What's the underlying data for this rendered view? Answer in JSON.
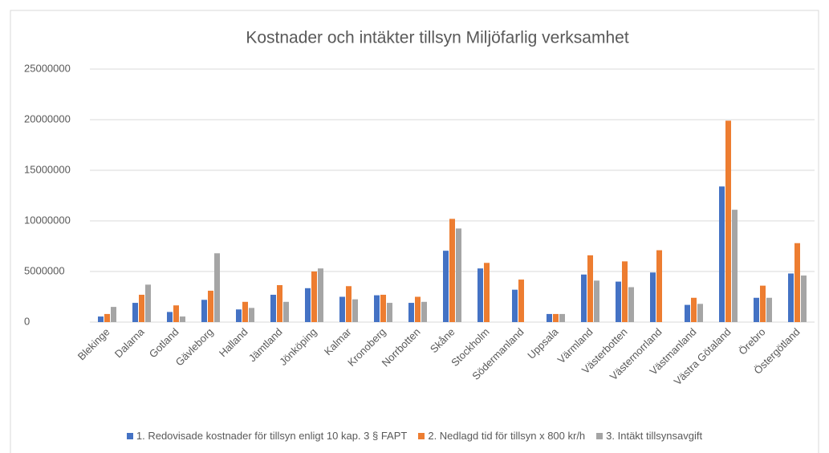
{
  "chart_data": {
    "type": "bar",
    "title": "Kostnader och intäkter tillsyn Miljöfarlig verksamhet",
    "categories": [
      "Blekinge",
      "Dalarna",
      "Gotland",
      "Gävleborg",
      "Halland",
      "Jämtland",
      "Jönköping",
      "Kalmar",
      "Kronoberg",
      "Norrbotten",
      "Skåne",
      "Stockholm",
      "Södermanland",
      "Uppsala",
      "Värmland",
      "Västerbotten",
      "Västernorrland",
      "Västmanland",
      "Västra Götaland",
      "Örebro",
      "Östergötland"
    ],
    "series": [
      {
        "name": "1. Redovisade kostnader för tillsyn enligt 10 kap. 3 § FAPT",
        "color": "#4472c4",
        "values": [
          550000,
          1900000,
          1000000,
          2200000,
          1250000,
          2700000,
          3350000,
          2500000,
          2650000,
          1900000,
          7050000,
          5300000,
          3200000,
          800000,
          4700000,
          4000000,
          4900000,
          1700000,
          13400000,
          2400000,
          4800000
        ]
      },
      {
        "name": "2. Nedlagd tid för tillsyn x 800 kr/h",
        "color": "#ed7d31",
        "values": [
          800000,
          2700000,
          1650000,
          3100000,
          2000000,
          3650000,
          5000000,
          3550000,
          2700000,
          2500000,
          10200000,
          5850000,
          4200000,
          800000,
          6600000,
          6000000,
          7100000,
          2400000,
          19900000,
          3600000,
          7800000
        ]
      },
      {
        "name": "3. Intäkt tillsynsavgift",
        "color": "#a5a5a5",
        "values": [
          1500000,
          3700000,
          550000,
          6800000,
          1400000,
          2000000,
          5300000,
          2250000,
          1900000,
          2000000,
          9250000,
          null,
          null,
          800000,
          4100000,
          3450000,
          null,
          1800000,
          11100000,
          2400000,
          4600000
        ]
      }
    ],
    "ylim": [
      0,
      25000000
    ],
    "yticks": [
      0,
      5000000,
      10000000,
      15000000,
      20000000,
      25000000
    ],
    "grid": true
  }
}
